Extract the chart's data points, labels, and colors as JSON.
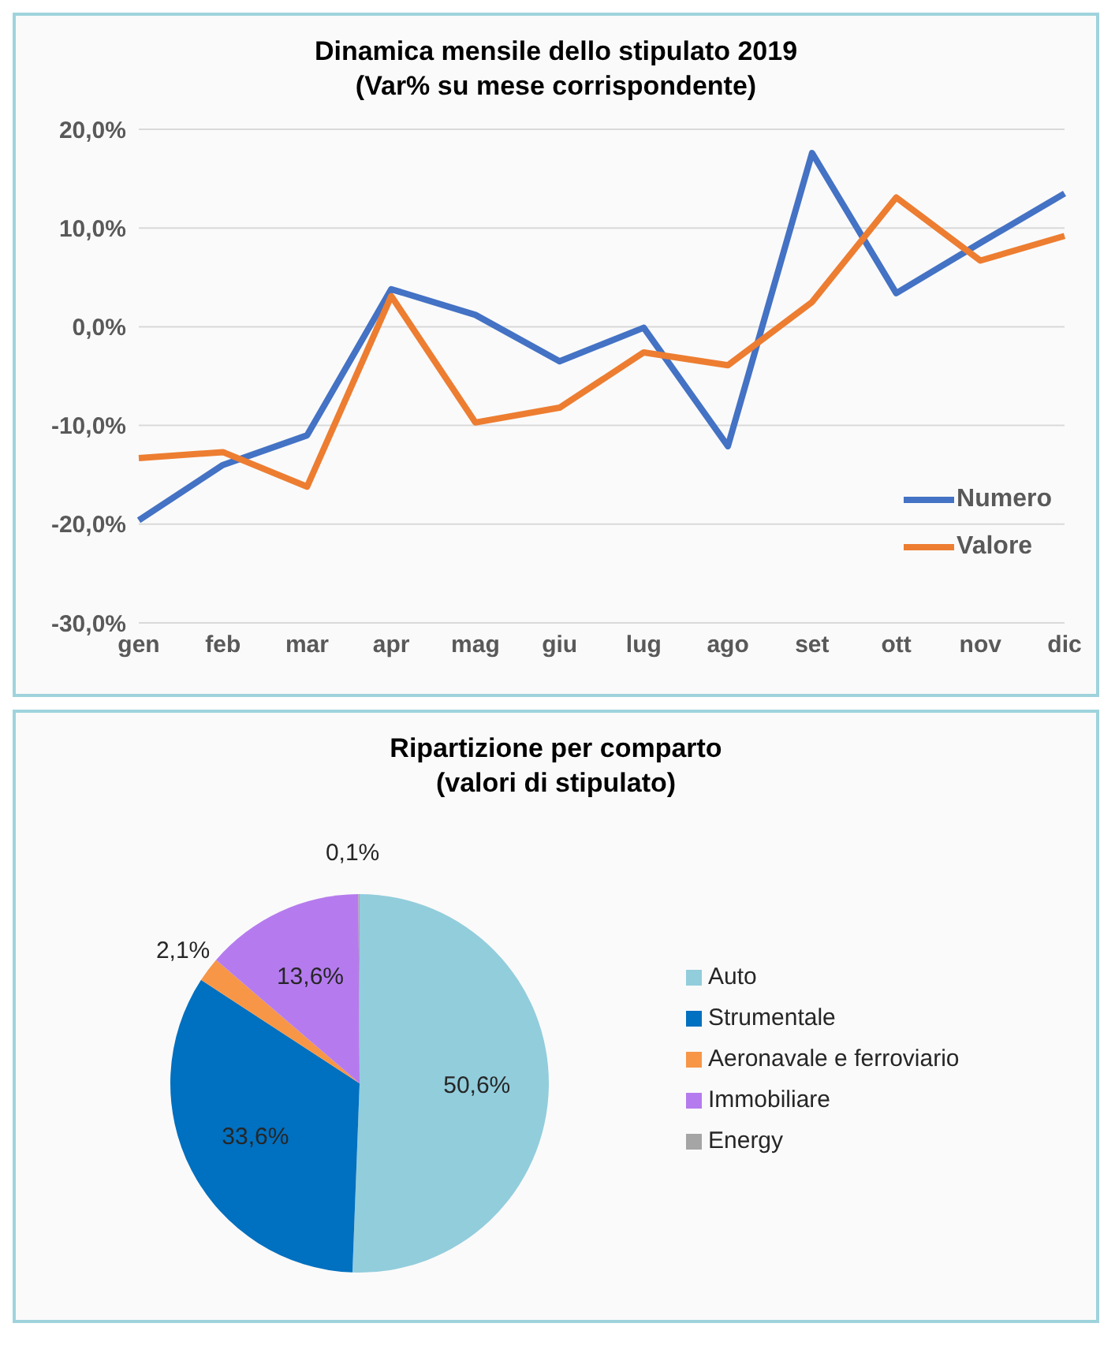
{
  "chart_data": [
    {
      "type": "line",
      "title": "Dinamica mensile dello stipulato 2019",
      "subtitle": "(Var% su mese corrispondente)",
      "categories": [
        "gen",
        "feb",
        "mar",
        "apr",
        "mag",
        "giu",
        "lug",
        "ago",
        "set",
        "ott",
        "nov",
        "dic"
      ],
      "series": [
        {
          "name": "Numero",
          "color": "#4472c4",
          "values": [
            -19.6,
            -14,
            -11,
            3.8,
            1.2,
            -3.5,
            -0.1,
            -12.1,
            17.6,
            3.4,
            8.5,
            13.5
          ]
        },
        {
          "name": "Valore",
          "color": "#ed7d31",
          "values": [
            -13.3,
            -12.7,
            -16.2,
            3.1,
            -9.7,
            -8.2,
            -2.6,
            -3.9,
            2.5,
            13.1,
            6.7,
            9.2
          ]
        }
      ],
      "ylim": [
        -30,
        20
      ],
      "yticks": [
        {
          "value": -30,
          "label": "-30,0%"
        },
        {
          "value": -20,
          "label": "-20,0%"
        },
        {
          "value": -10,
          "label": "-10,0%"
        },
        {
          "value": 0,
          "label": "0,0%"
        },
        {
          "value": 10,
          "label": "10,0%"
        },
        {
          "value": 20,
          "label": "20,0%"
        }
      ],
      "grid": "y",
      "legend": "bottom right",
      "marker": "none",
      "line_style": "solid"
    },
    {
      "type": "pie",
      "title": "Ripartizione per comparto",
      "subtitle": "(valori di stipulato)",
      "categories": [
        "Auto",
        "Strumentale",
        "Aeronavale e ferroviario",
        "Immobiliare",
        "Energy"
      ],
      "values": [
        50.6,
        33.6,
        2.1,
        13.6,
        0.1
      ],
      "colors": [
        "#92cddc",
        "#0070c0",
        "#f79646",
        "#b57bee",
        "#a5a5a5"
      ],
      "value_labels": [
        "50,6%",
        "33,6%",
        "2,1%",
        "13,6%",
        "0,1%"
      ],
      "legend": "right"
    }
  ]
}
